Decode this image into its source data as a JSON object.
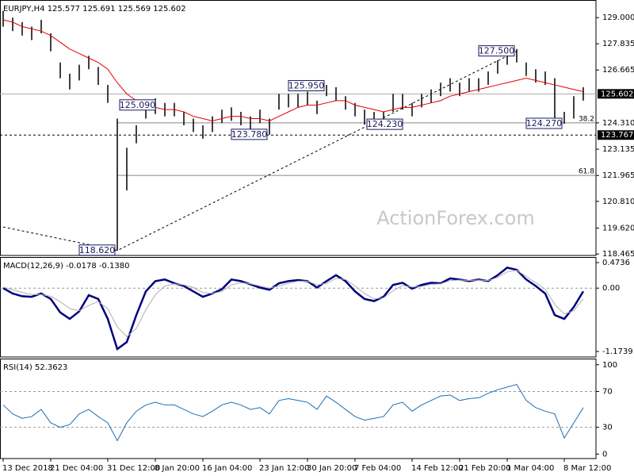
{
  "chart_data": [
    {
      "type": "hl-bar",
      "title": "EURJPY,H4  125.577 125.691 125.569 125.602",
      "watermark": "ActionForex.com",
      "ylim": [
        118.4,
        129.75
      ],
      "yticks": [
        {
          "value": 129.0,
          "label": "129.000"
        },
        {
          "value": 127.835,
          "label": "127.835"
        },
        {
          "value": 126.665,
          "label": "126.665"
        },
        {
          "value": 124.31,
          "label": "124.310"
        },
        {
          "value": 123.135,
          "label": "123.135"
        },
        {
          "value": 121.965,
          "label": "121.965"
        },
        {
          "value": 120.81,
          "label": "120.810"
        },
        {
          "value": 119.62,
          "label": "119.620"
        },
        {
          "value": 118.465,
          "label": "118.465"
        }
      ],
      "bars": {
        "color": "#000000",
        "high": [
          129.3,
          129.0,
          128.8,
          128.6,
          128.9,
          128.3,
          127.0,
          126.5,
          126.9,
          127.3,
          126.8,
          126.0,
          124.5,
          123.2,
          124.2,
          125.2,
          125.4,
          125.2,
          125.2,
          124.8,
          124.5,
          124.2,
          124.6,
          124.9,
          125.0,
          124.8,
          124.6,
          124.9,
          124.5,
          125.6,
          125.6,
          125.6,
          125.7,
          125.3,
          126.0,
          125.9,
          125.5,
          125.2,
          124.9,
          124.8,
          124.8,
          125.6,
          125.6,
          125.2,
          125.6,
          125.8,
          126.1,
          126.3,
          126.1,
          126.3,
          126.3,
          126.6,
          127.1,
          127.5,
          127.6,
          127.0,
          126.7,
          126.6,
          126.3,
          124.8,
          125.5,
          125.9
        ],
        "low": [
          128.6,
          128.4,
          128.2,
          128.0,
          128.3,
          127.5,
          126.3,
          125.8,
          126.2,
          126.7,
          126.0,
          125.2,
          118.62,
          121.3,
          123.4,
          124.5,
          124.7,
          124.6,
          124.6,
          124.2,
          123.9,
          123.6,
          123.9,
          124.3,
          124.4,
          124.2,
          123.9,
          124.3,
          123.78,
          124.9,
          125.0,
          125.0,
          125.1,
          124.7,
          125.5,
          125.3,
          124.9,
          124.6,
          124.23,
          124.2,
          124.2,
          124.8,
          124.9,
          124.6,
          125.0,
          125.2,
          125.5,
          125.7,
          125.5,
          125.7,
          125.7,
          126.0,
          126.5,
          126.9,
          127.0,
          126.4,
          126.1,
          126.0,
          124.5,
          124.27,
          124.5,
          125.3
        ]
      },
      "ma": {
        "color": "#e00000",
        "values": [
          128.9,
          128.8,
          128.6,
          128.5,
          128.4,
          128.2,
          127.9,
          127.6,
          127.4,
          127.2,
          127.0,
          126.7,
          126.1,
          125.6,
          125.3,
          125.1,
          125.0,
          124.9,
          124.9,
          124.8,
          124.6,
          124.5,
          124.4,
          124.5,
          124.6,
          124.6,
          124.5,
          124.5,
          124.4,
          124.6,
          124.8,
          125.0,
          125.1,
          125.1,
          125.2,
          125.3,
          125.3,
          125.1,
          125.0,
          124.9,
          124.8,
          124.9,
          125.0,
          125.0,
          125.1,
          125.2,
          125.3,
          125.5,
          125.6,
          125.7,
          125.8,
          125.9,
          126.0,
          126.1,
          126.2,
          126.3,
          126.2,
          126.1,
          126.0,
          125.9,
          125.8,
          125.7
        ]
      },
      "trendline": {
        "x": [
          0,
          12,
          54
        ],
        "values": [
          119.67,
          118.62,
          127.5
        ]
      },
      "levels": [
        {
          "value": 124.31,
          "label": "38.2",
          "start": 12
        },
        {
          "value": 121.965,
          "label": "61.8",
          "start": 12
        }
      ],
      "marked_level": 123.767,
      "last": {
        "value": 125.602,
        "label": "125.602"
      },
      "annotations": [
        {
          "index": 12,
          "value": 125.09,
          "label": "125.090",
          "side": "right"
        },
        {
          "index": 28,
          "value": 123.78,
          "label": "123.780",
          "side": "left"
        },
        {
          "index": 34,
          "value": 125.95,
          "label": "125.950",
          "side": "left"
        },
        {
          "index": 38,
          "value": 124.23,
          "label": "124.230",
          "side": "right"
        },
        {
          "index": 54,
          "value": 127.5,
          "label": "127.500",
          "side": "left"
        },
        {
          "index": 59,
          "value": 124.27,
          "label": "124.270",
          "side": "left"
        },
        {
          "index": 12,
          "value": 118.62,
          "label": "118.620",
          "side": "left"
        }
      ]
    },
    {
      "type": "line",
      "title": "MACD(12,26,9) -0.0178 -0.1380",
      "ylim": [
        -1.277,
        0.562
      ],
      "yticks": [
        0.4736,
        {
          "value": 0,
          "label": "0.00"
        },
        -1.1739
      ],
      "tick_lines": [
        false,
        true,
        false
      ],
      "series": [
        {
          "color": "#00007f",
          "width": 2.5,
          "values": [
            0.0,
            -0.1,
            -0.15,
            -0.16,
            -0.1,
            -0.2,
            -0.45,
            -0.57,
            -0.43,
            -0.13,
            -0.2,
            -0.57,
            -1.13,
            -1.0,
            -0.5,
            -0.06,
            0.13,
            0.16,
            0.09,
            0.04,
            -0.06,
            -0.16,
            -0.1,
            -0.02,
            0.16,
            0.13,
            0.07,
            0.01,
            -0.03,
            0.09,
            0.13,
            0.15,
            0.13,
            0.01,
            0.13,
            0.24,
            0.13,
            -0.06,
            -0.2,
            -0.24,
            -0.16,
            0.06,
            0.1,
            -0.01,
            0.06,
            0.1,
            0.09,
            0.18,
            0.16,
            0.13,
            0.16,
            0.13,
            0.24,
            0.38,
            0.34,
            0.16,
            0.04,
            -0.1,
            -0.5,
            -0.57,
            -0.35,
            -0.06
          ]
        },
        {
          "color": "#b0b0b0",
          "width": 1,
          "values": [
            0.02,
            -0.03,
            -0.08,
            -0.12,
            -0.12,
            -0.15,
            -0.25,
            -0.38,
            -0.42,
            -0.32,
            -0.25,
            -0.38,
            -0.72,
            -0.9,
            -0.75,
            -0.4,
            -0.12,
            0.04,
            0.08,
            0.06,
            0.01,
            -0.08,
            -0.1,
            -0.06,
            0.06,
            0.1,
            0.08,
            0.04,
            0.0,
            0.04,
            0.09,
            0.13,
            0.13,
            0.06,
            0.09,
            0.18,
            0.16,
            0.04,
            -0.1,
            -0.2,
            -0.18,
            -0.05,
            0.05,
            0.02,
            0.03,
            0.07,
            0.08,
            0.14,
            0.15,
            0.14,
            0.15,
            0.14,
            0.2,
            0.3,
            0.33,
            0.22,
            0.1,
            -0.02,
            -0.3,
            -0.48,
            -0.42,
            -0.2
          ]
        }
      ]
    },
    {
      "type": "line",
      "title": "RSI(14) 52.3623",
      "ylim": [
        -5,
        106
      ],
      "yticks": [
        100,
        70,
        30,
        0
      ],
      "tick_lines": [
        false,
        true,
        true,
        false
      ],
      "categories": [
        "13 Dec 2018",
        null,
        null,
        null,
        null,
        "21 Dec 04:00",
        null,
        null,
        null,
        null,
        null,
        "31 Dec 12:00",
        null,
        null,
        null,
        null,
        "8 Jan 20:00",
        null,
        null,
        null,
        null,
        "16 Jan 04:00",
        null,
        null,
        null,
        null,
        null,
        "23 Jan 12:00",
        null,
        null,
        null,
        null,
        "30 Jan 20:00",
        null,
        null,
        null,
        null,
        "7 Feb 04:00",
        null,
        null,
        null,
        null,
        null,
        "14 Feb 12:00",
        null,
        null,
        null,
        null,
        "21 Feb 20:00",
        null,
        null,
        null,
        null,
        "1 Mar 04:00",
        null,
        null,
        null,
        null,
        null,
        "8 Mar 12:00",
        null,
        null
      ],
      "series": [
        {
          "color": "#1e6eb4",
          "width": 1,
          "values": [
            55,
            45,
            40,
            42,
            50,
            35,
            30,
            33,
            45,
            50,
            42,
            35,
            15,
            35,
            48,
            55,
            58,
            55,
            55,
            50,
            45,
            42,
            48,
            55,
            58,
            55,
            50,
            52,
            45,
            60,
            62,
            60,
            58,
            50,
            65,
            58,
            50,
            42,
            38,
            40,
            42,
            55,
            58,
            48,
            55,
            60,
            65,
            66,
            60,
            62,
            63,
            68,
            72,
            75,
            78,
            60,
            52,
            48,
            45,
            18,
            35,
            52
          ]
        }
      ]
    }
  ]
}
